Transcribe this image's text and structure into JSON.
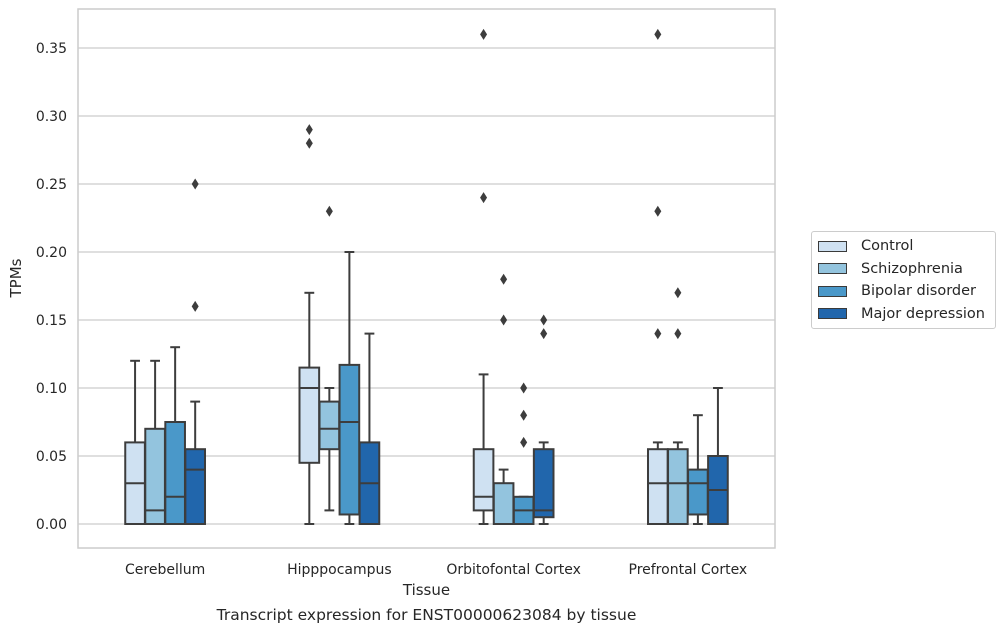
{
  "chart_data": {
    "type": "box",
    "title": "",
    "caption": "Transcript expression for ENST00000623084 by tissue",
    "xlabel": "Tissue",
    "ylabel": "TPMs",
    "ylim": [
      -0.0175,
      0.378
    ],
    "yticks": [
      "0.00",
      "0.05",
      "0.10",
      "0.15",
      "0.20",
      "0.25",
      "0.30",
      "0.35"
    ],
    "grid": "horizontal",
    "legend_position": "right",
    "categories": [
      "Cerebellum",
      "Hipppocampus",
      "Orbitofontal Cortex",
      "Prefrontal Cortex"
    ],
    "series": [
      {
        "name": "Control",
        "color": "#cfe1f2",
        "boxes": [
          {
            "min": 0.0,
            "q1": 0.0,
            "median": 0.03,
            "q3": 0.06,
            "max": 0.12,
            "outliers": []
          },
          {
            "min": 0.0,
            "q1": 0.045,
            "median": 0.1,
            "q3": 0.115,
            "max": 0.17,
            "outliers": [
              0.28,
              0.29
            ]
          },
          {
            "min": 0.0,
            "q1": 0.01,
            "median": 0.02,
            "q3": 0.055,
            "max": 0.11,
            "outliers": [
              0.24,
              0.36
            ]
          },
          {
            "min": 0.0,
            "q1": 0.0,
            "median": 0.03,
            "q3": 0.055,
            "max": 0.06,
            "outliers": [
              0.14,
              0.23,
              0.36
            ]
          }
        ]
      },
      {
        "name": "Schizophrenia",
        "color": "#93c4de",
        "boxes": [
          {
            "min": 0.0,
            "q1": 0.0,
            "median": 0.01,
            "q3": 0.07,
            "max": 0.12,
            "outliers": []
          },
          {
            "min": 0.01,
            "q1": 0.055,
            "median": 0.07,
            "q3": 0.09,
            "max": 0.1,
            "outliers": [
              0.23
            ]
          },
          {
            "min": 0.0,
            "q1": 0.0,
            "median": 0.0,
            "q3": 0.03,
            "max": 0.04,
            "outliers": [
              0.15,
              0.18
            ]
          },
          {
            "min": 0.0,
            "q1": 0.0,
            "median": 0.03,
            "q3": 0.055,
            "max": 0.06,
            "outliers": [
              0.14,
              0.17
            ]
          }
        ]
      },
      {
        "name": "Bipolar disorder",
        "color": "#4a98c9",
        "boxes": [
          {
            "min": 0.0,
            "q1": 0.0,
            "median": 0.02,
            "q3": 0.075,
            "max": 0.13,
            "outliers": []
          },
          {
            "min": 0.0,
            "q1": 0.007,
            "median": 0.075,
            "q3": 0.117,
            "max": 0.2,
            "outliers": []
          },
          {
            "min": 0.0,
            "q1": 0.0,
            "median": 0.01,
            "q3": 0.02,
            "max": 0.02,
            "outliers": [
              0.06,
              0.08,
              0.1
            ]
          },
          {
            "min": 0.0,
            "q1": 0.007,
            "median": 0.03,
            "q3": 0.04,
            "max": 0.08,
            "outliers": []
          }
        ]
      },
      {
        "name": "Major depression",
        "color": "#2166ac",
        "boxes": [
          {
            "min": 0.0,
            "q1": 0.0,
            "median": 0.04,
            "q3": 0.055,
            "max": 0.09,
            "outliers": [
              0.16,
              0.25
            ]
          },
          {
            "min": 0.0,
            "q1": 0.0,
            "median": 0.03,
            "q3": 0.06,
            "max": 0.14,
            "outliers": []
          },
          {
            "min": 0.0,
            "q1": 0.005,
            "median": 0.01,
            "q3": 0.055,
            "max": 0.06,
            "outliers": [
              0.14,
              0.15
            ]
          },
          {
            "min": 0.0,
            "q1": 0.0,
            "median": 0.025,
            "q3": 0.05,
            "max": 0.1,
            "outliers": []
          }
        ]
      }
    ]
  }
}
